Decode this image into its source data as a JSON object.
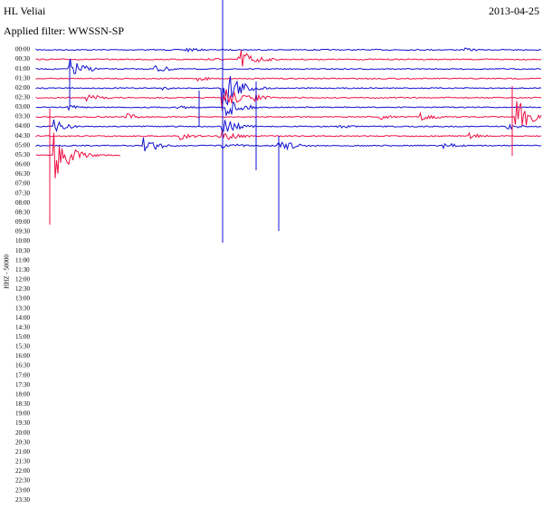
{
  "header": {
    "station": "HL Veliai",
    "date": "2013-04-25",
    "filter": "Applied filter: WWSSN-SP"
  },
  "side_label": "HHZ - 50000",
  "time_labels": [
    "00:00",
    "00:30",
    "01:00",
    "01:30",
    "02:00",
    "02:30",
    "03:00",
    "03:30",
    "04:00",
    "04:30",
    "05:00",
    "05:30",
    "06:00",
    "06:30",
    "07:00",
    "07:30",
    "08:00",
    "08:30",
    "09:00",
    "09:30",
    "10:00",
    "10:30",
    "11:00",
    "11:30",
    "12:00",
    "12:30",
    "13:00",
    "13:30",
    "14:00",
    "14:30",
    "15:00",
    "15:30",
    "16:00",
    "16:30",
    "17:00",
    "17:30",
    "18:00",
    "18:30",
    "19:00",
    "19:30",
    "20:00",
    "20:30",
    "21:00",
    "21:30",
    "22:00",
    "22:30",
    "23:00",
    "23:30"
  ]
}
